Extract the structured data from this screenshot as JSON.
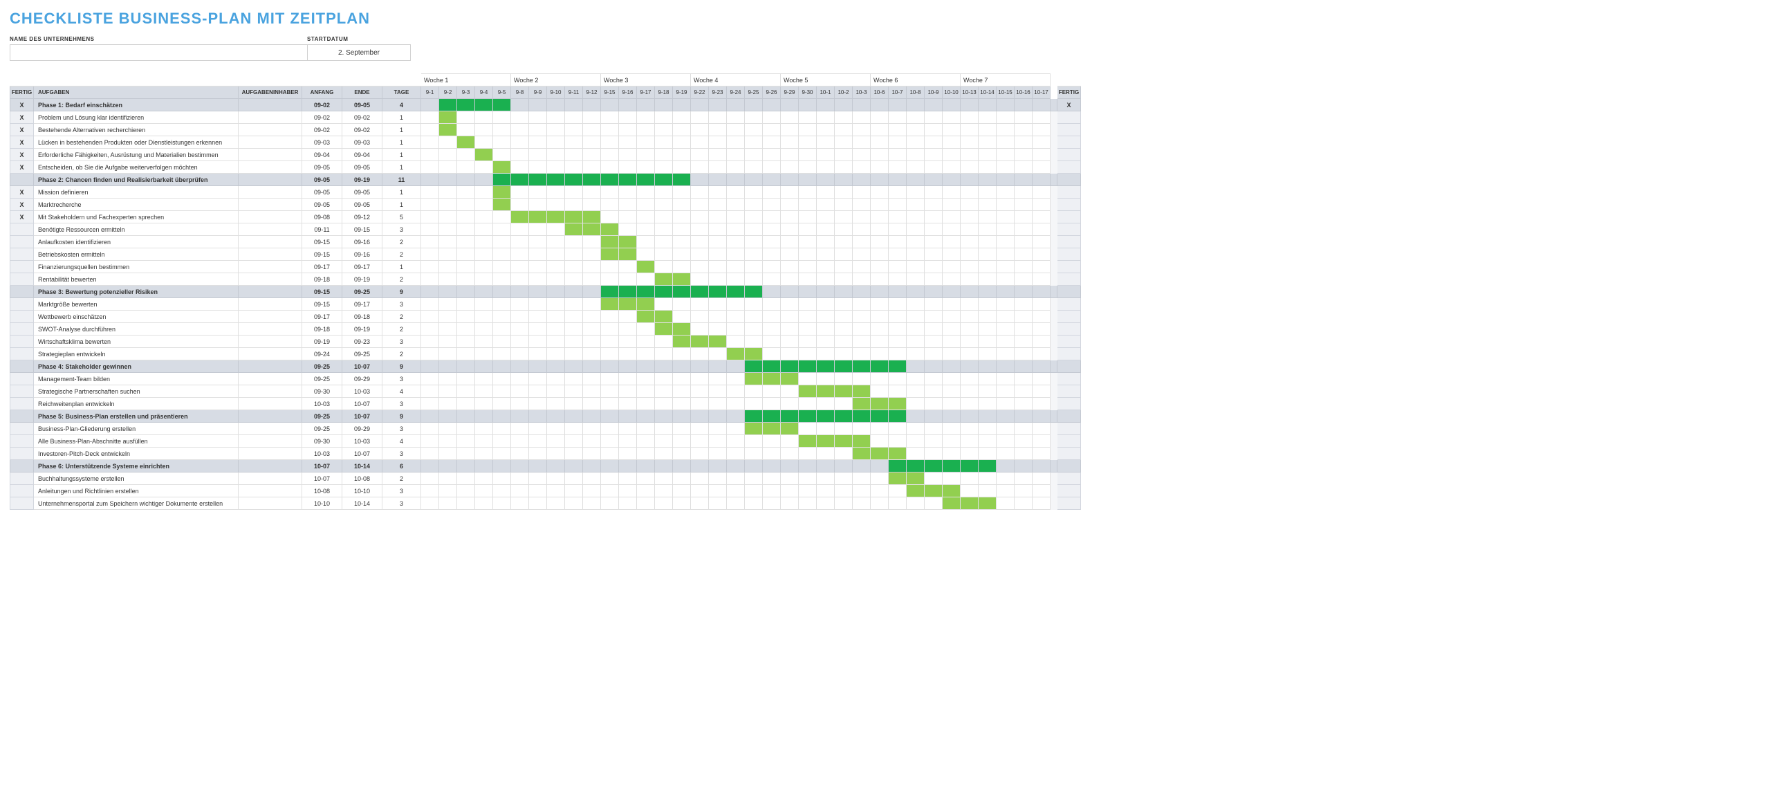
{
  "title": "CHECKLISTE BUSINESS-PLAN MIT ZEITPLAN",
  "labels": {
    "company": "NAME DES UNTERNEHMENS",
    "startdate": "STARTDATUM",
    "fertig": "FERTIG",
    "aufgaben": "AUFGABEN",
    "owner": "AUFGABENINHABER",
    "anfang": "ANFANG",
    "ende": "ENDE",
    "tage": "TAGE",
    "week_prefix": "Woche"
  },
  "company_value": "",
  "startdate_value": "2. September",
  "colors": {
    "title": "#4aa3df",
    "header_bg": "#d7dce4",
    "phase_bar": "#1ab050",
    "task_bar": "#92cf50",
    "grid": "#e0e0e0"
  },
  "days": [
    "9-1",
    "9-2",
    "9-3",
    "9-4",
    "9-5",
    "9-8",
    "9-9",
    "9-10",
    "9-11",
    "9-12",
    "9-15",
    "9-16",
    "9-17",
    "9-18",
    "9-19",
    "9-22",
    "9-23",
    "9-24",
    "9-25",
    "9-26",
    "9-29",
    "9-30",
    "10-1",
    "10-2",
    "10-3",
    "10-6",
    "10-7",
    "10-8",
    "10-9",
    "10-10",
    "10-13",
    "10-14",
    "10-15",
    "10-16",
    "10-17"
  ],
  "weeks": [
    {
      "label": "Woche 1",
      "span": 5
    },
    {
      "label": "Woche 2",
      "span": 5
    },
    {
      "label": "Woche 3",
      "span": 5
    },
    {
      "label": "Woche 4",
      "span": 5
    },
    {
      "label": "Woche 5",
      "span": 5
    },
    {
      "label": "Woche 6",
      "span": 5
    },
    {
      "label": "Woche 7",
      "span": 5
    }
  ],
  "rows": [
    {
      "phase": true,
      "done": "X",
      "task": "Phase 1: Bedarf einschätzen",
      "owner": "",
      "anf": "09-02",
      "ende": "09-05",
      "tage": "4",
      "start": 1,
      "len": 4,
      "done2": "X"
    },
    {
      "done": "X",
      "task": "Problem und Lösung klar identifizieren",
      "owner": "",
      "anf": "09-02",
      "ende": "09-02",
      "tage": "1",
      "start": 1,
      "len": 1,
      "done2": ""
    },
    {
      "done": "X",
      "task": "Bestehende Alternativen recherchieren",
      "owner": "",
      "anf": "09-02",
      "ende": "09-02",
      "tage": "1",
      "start": 1,
      "len": 1,
      "done2": ""
    },
    {
      "done": "X",
      "task": "Lücken in bestehenden Produkten oder Dienstleistungen erkennen",
      "owner": "",
      "anf": "09-03",
      "ende": "09-03",
      "tage": "1",
      "start": 2,
      "len": 1,
      "done2": ""
    },
    {
      "done": "X",
      "task": "Erforderliche Fähigkeiten, Ausrüstung und Materialien bestimmen",
      "owner": "",
      "anf": "09-04",
      "ende": "09-04",
      "tage": "1",
      "start": 3,
      "len": 1,
      "done2": ""
    },
    {
      "done": "X",
      "task": "Entscheiden, ob Sie die Aufgabe weiterverfolgen möchten",
      "owner": "",
      "anf": "09-05",
      "ende": "09-05",
      "tage": "1",
      "start": 4,
      "len": 1,
      "done2": ""
    },
    {
      "phase": true,
      "done": "",
      "task": "Phase 2: Chancen finden und Realisierbarkeit überprüfen",
      "owner": "",
      "anf": "09-05",
      "ende": "09-19",
      "tage": "11",
      "start": 4,
      "len": 11,
      "done2": ""
    },
    {
      "done": "X",
      "task": "Mission definieren",
      "owner": "",
      "anf": "09-05",
      "ende": "09-05",
      "tage": "1",
      "start": 4,
      "len": 1,
      "done2": ""
    },
    {
      "done": "X",
      "task": "Marktrecherche",
      "owner": "",
      "anf": "09-05",
      "ende": "09-05",
      "tage": "1",
      "start": 4,
      "len": 1,
      "done2": ""
    },
    {
      "done": "X",
      "task": "Mit Stakeholdern und Fachexperten sprechen",
      "owner": "",
      "anf": "09-08",
      "ende": "09-12",
      "tage": "5",
      "start": 5,
      "len": 5,
      "done2": ""
    },
    {
      "done": "",
      "task": "Benötigte Ressourcen ermitteln",
      "owner": "",
      "anf": "09-11",
      "ende": "09-15",
      "tage": "3",
      "start": 8,
      "len": 3,
      "done2": ""
    },
    {
      "done": "",
      "task": "Anlaufkosten identifizieren",
      "owner": "",
      "anf": "09-15",
      "ende": "09-16",
      "tage": "2",
      "start": 10,
      "len": 2,
      "done2": ""
    },
    {
      "done": "",
      "task": "Betriebskosten ermitteln",
      "owner": "",
      "anf": "09-15",
      "ende": "09-16",
      "tage": "2",
      "start": 10,
      "len": 2,
      "done2": ""
    },
    {
      "done": "",
      "task": "Finanzierungsquellen bestimmen",
      "owner": "",
      "anf": "09-17",
      "ende": "09-17",
      "tage": "1",
      "start": 12,
      "len": 1,
      "done2": ""
    },
    {
      "done": "",
      "task": "Rentabilität bewerten",
      "owner": "",
      "anf": "09-18",
      "ende": "09-19",
      "tage": "2",
      "start": 13,
      "len": 2,
      "done2": ""
    },
    {
      "phase": true,
      "done": "",
      "task": "Phase 3: Bewertung potenzieller Risiken",
      "owner": "",
      "anf": "09-15",
      "ende": "09-25",
      "tage": "9",
      "start": 10,
      "len": 9,
      "done2": ""
    },
    {
      "done": "",
      "task": "Marktgröße bewerten",
      "owner": "",
      "anf": "09-15",
      "ende": "09-17",
      "tage": "3",
      "start": 10,
      "len": 3,
      "done2": ""
    },
    {
      "done": "",
      "task": "Wettbewerb einschätzen",
      "owner": "",
      "anf": "09-17",
      "ende": "09-18",
      "tage": "2",
      "start": 12,
      "len": 2,
      "done2": ""
    },
    {
      "done": "",
      "task": "SWOT-Analyse durchführen",
      "owner": "",
      "anf": "09-18",
      "ende": "09-19",
      "tage": "2",
      "start": 13,
      "len": 2,
      "done2": ""
    },
    {
      "done": "",
      "task": "Wirtschaftsklima bewerten",
      "owner": "",
      "anf": "09-19",
      "ende": "09-23",
      "tage": "3",
      "start": 14,
      "len": 3,
      "done2": ""
    },
    {
      "done": "",
      "task": "Strategieplan entwickeln",
      "owner": "",
      "anf": "09-24",
      "ende": "09-25",
      "tage": "2",
      "start": 17,
      "len": 2,
      "done2": ""
    },
    {
      "phase": true,
      "done": "",
      "task": "Phase 4: Stakeholder gewinnen",
      "owner": "",
      "anf": "09-25",
      "ende": "10-07",
      "tage": "9",
      "start": 18,
      "len": 9,
      "done2": ""
    },
    {
      "done": "",
      "task": "Management-Team bilden",
      "owner": "",
      "anf": "09-25",
      "ende": "09-29",
      "tage": "3",
      "start": 18,
      "len": 3,
      "done2": ""
    },
    {
      "done": "",
      "task": "Strategische Partnerschaften suchen",
      "owner": "",
      "anf": "09-30",
      "ende": "10-03",
      "tage": "4",
      "start": 21,
      "len": 4,
      "done2": ""
    },
    {
      "done": "",
      "task": "Reichweitenplan entwickeln",
      "owner": "",
      "anf": "10-03",
      "ende": "10-07",
      "tage": "3",
      "start": 24,
      "len": 3,
      "done2": ""
    },
    {
      "phase": true,
      "done": "",
      "task": "Phase 5: Business-Plan erstellen und präsentieren",
      "owner": "",
      "anf": "09-25",
      "ende": "10-07",
      "tage": "9",
      "start": 18,
      "len": 9,
      "done2": ""
    },
    {
      "done": "",
      "task": "Business-Plan-Gliederung erstellen",
      "owner": "",
      "anf": "09-25",
      "ende": "09-29",
      "tage": "3",
      "start": 18,
      "len": 3,
      "done2": ""
    },
    {
      "done": "",
      "task": "Alle Business-Plan-Abschnitte ausfüllen",
      "owner": "",
      "anf": "09-30",
      "ende": "10-03",
      "tage": "4",
      "start": 21,
      "len": 4,
      "done2": ""
    },
    {
      "done": "",
      "task": "Investoren-Pitch-Deck entwickeln",
      "owner": "",
      "anf": "10-03",
      "ende": "10-07",
      "tage": "3",
      "start": 24,
      "len": 3,
      "done2": ""
    },
    {
      "phase": true,
      "done": "",
      "task": "Phase 6: Unterstützende Systeme einrichten",
      "owner": "",
      "anf": "10-07",
      "ende": "10-14",
      "tage": "6",
      "start": 26,
      "len": 6,
      "done2": ""
    },
    {
      "done": "",
      "task": "Buchhaltungssysteme erstellen",
      "owner": "",
      "anf": "10-07",
      "ende": "10-08",
      "tage": "2",
      "start": 26,
      "len": 2,
      "done2": ""
    },
    {
      "done": "",
      "task": "Anleitungen und Richtlinien erstellen",
      "owner": "",
      "anf": "10-08",
      "ende": "10-10",
      "tage": "3",
      "start": 27,
      "len": 3,
      "done2": ""
    },
    {
      "done": "",
      "task": "Unternehmensportal zum Speichern wichtiger Dokumente erstellen",
      "owner": "",
      "anf": "10-10",
      "ende": "10-14",
      "tage": "3",
      "start": 29,
      "len": 3,
      "done2": ""
    }
  ]
}
